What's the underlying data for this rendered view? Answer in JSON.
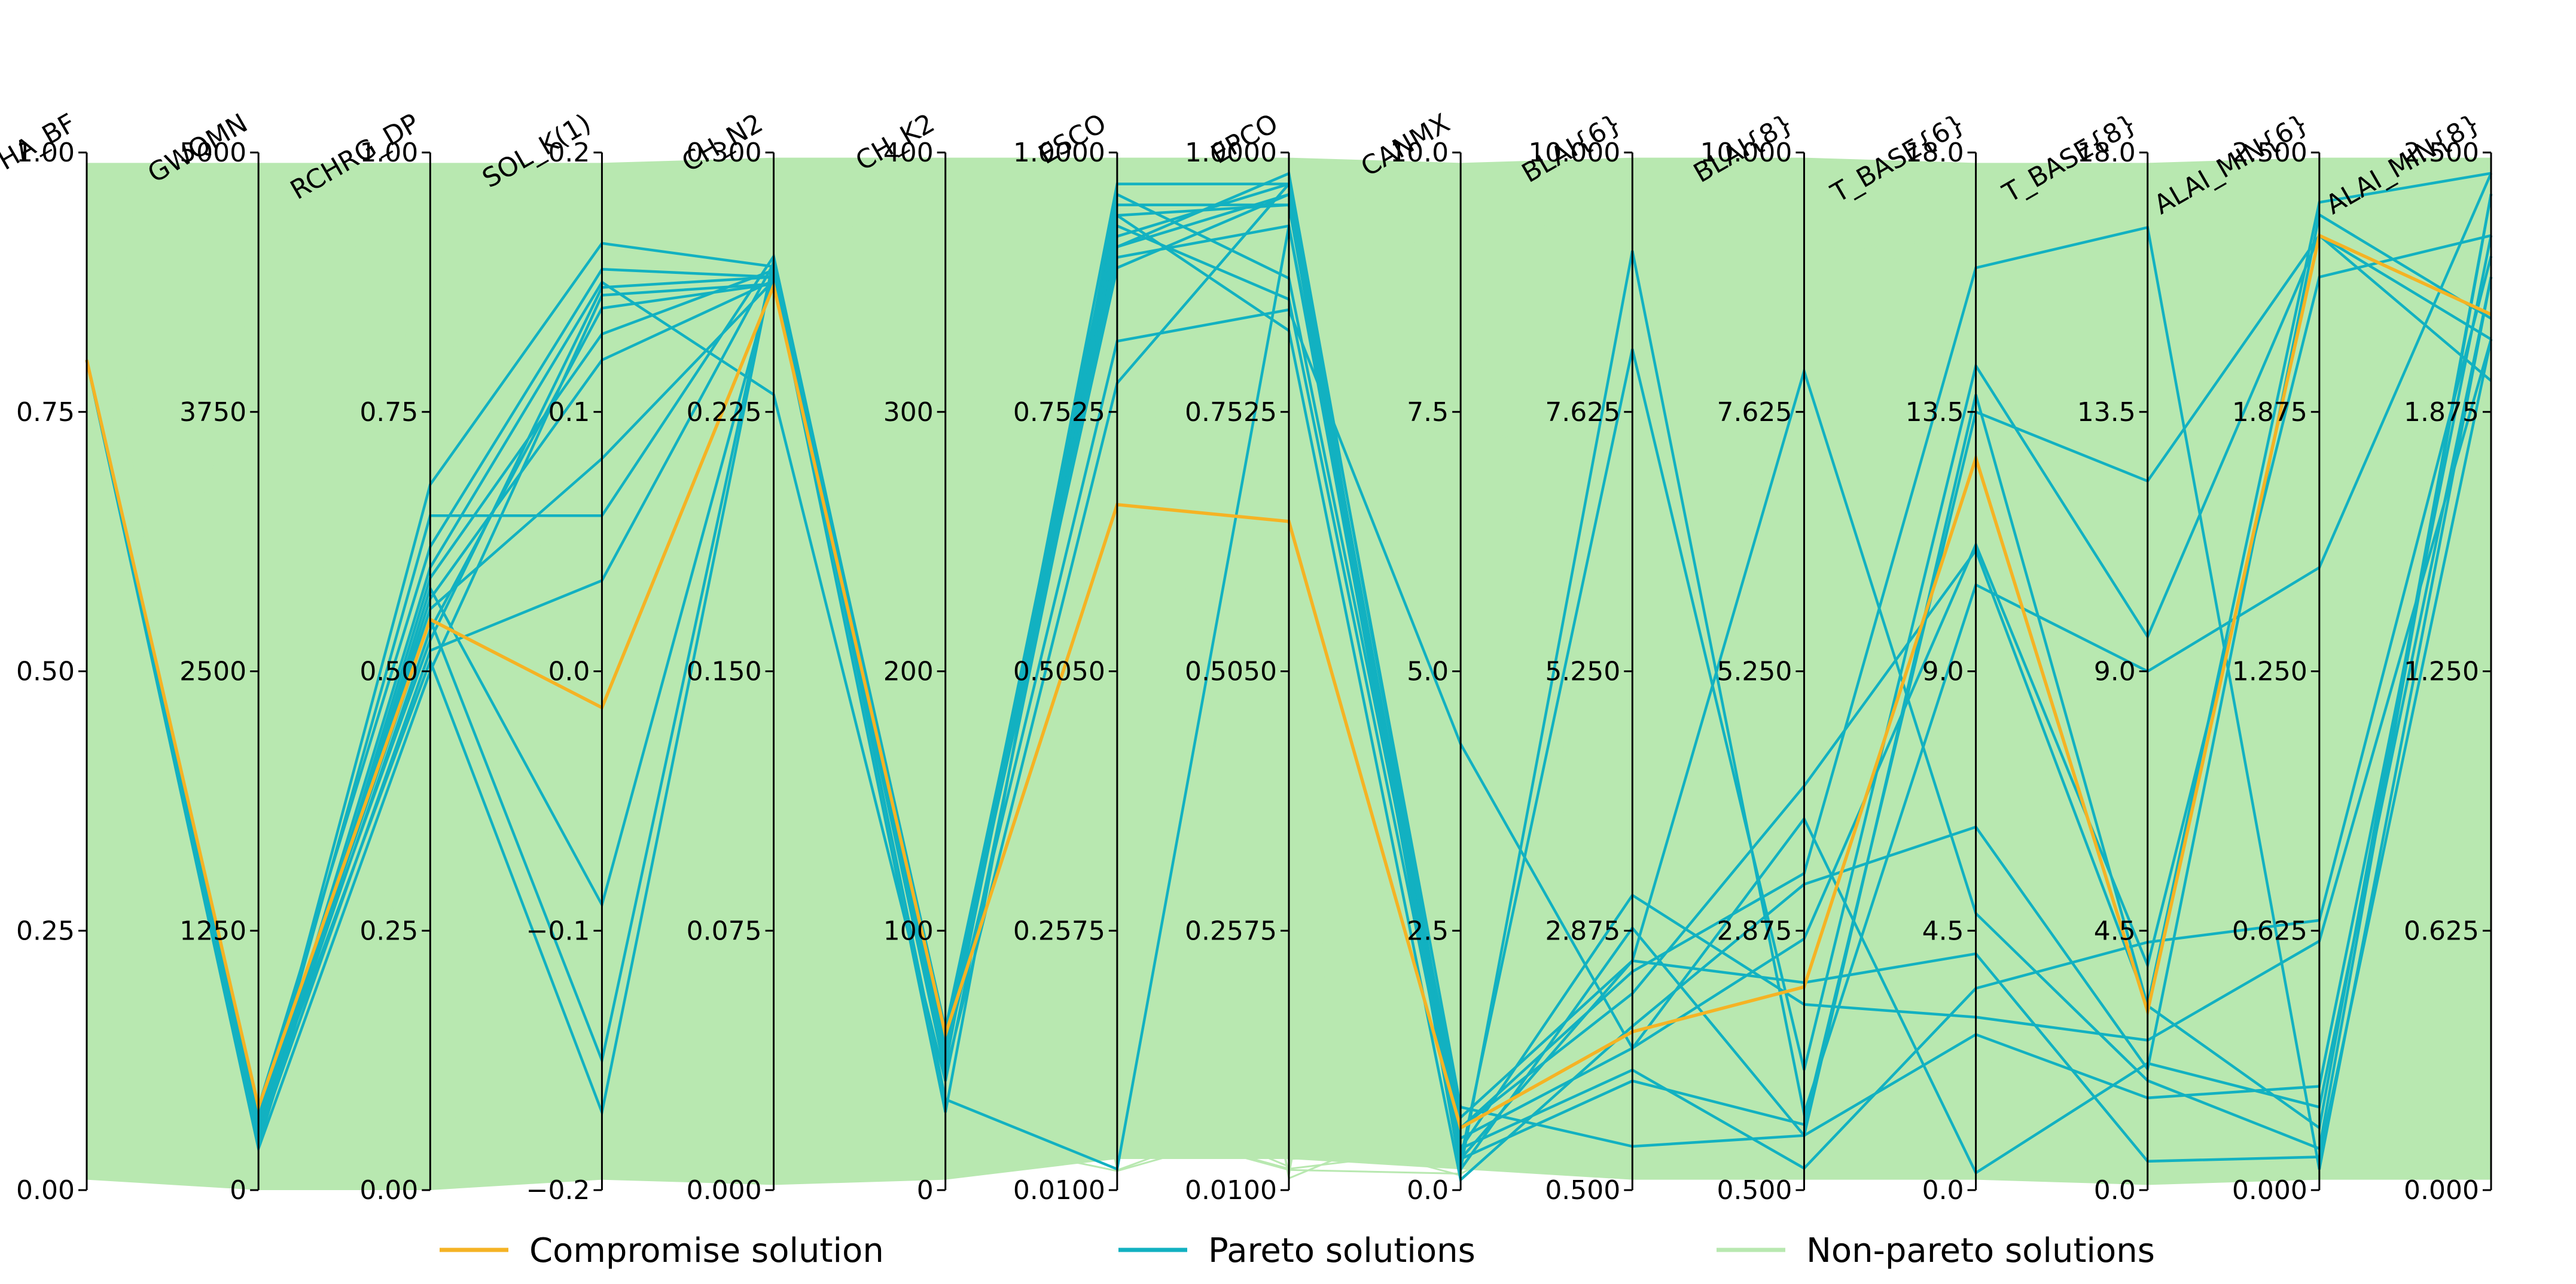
{
  "chart_data": {
    "type": "parallel-coordinates",
    "title": "",
    "axes": [
      {
        "name": "ALPHA_BF",
        "min": 0.0,
        "max": 1.0,
        "ticks": [
          "0.00",
          "0.25",
          "0.50",
          "0.75",
          "1.00"
        ]
      },
      {
        "name": "GWQMN",
        "min": 0,
        "max": 5000,
        "ticks": [
          "0",
          "1250",
          "2500",
          "3750",
          "5000"
        ]
      },
      {
        "name": "RCHRG_DP",
        "min": 0.0,
        "max": 1.0,
        "ticks": [
          "0.00",
          "0.25",
          "0.50",
          "0.75",
          "1.00"
        ]
      },
      {
        "name": "SOL_K(1)",
        "min": -0.2,
        "max": 0.2,
        "ticks": [
          "−0.2",
          "−0.1",
          "0.0",
          "0.1",
          "0.2"
        ]
      },
      {
        "name": "CH_N2",
        "min": 0.0,
        "max": 0.3,
        "ticks": [
          "0.000",
          "0.075",
          "0.150",
          "0.225",
          "0.300"
        ]
      },
      {
        "name": "CH_K2",
        "min": 0,
        "max": 400,
        "ticks": [
          "0",
          "100",
          "200",
          "300",
          "400"
        ]
      },
      {
        "name": "ESCO",
        "min": 0.01,
        "max": 1.0,
        "ticks": [
          "0.0100",
          "0.2575",
          "0.5050",
          "0.7525",
          "1.0000"
        ]
      },
      {
        "name": "EPCO",
        "min": 0.01,
        "max": 1.0,
        "ticks": [
          "0.0100",
          "0.2575",
          "0.5050",
          "0.7525",
          "1.0000"
        ]
      },
      {
        "name": "CANMX",
        "min": 0.0,
        "max": 10.0,
        "ticks": [
          "0.0",
          "2.5",
          "5.0",
          "7.5",
          "10.0"
        ]
      },
      {
        "name": "BLAI{6}",
        "min": 0.5,
        "max": 10.0,
        "ticks": [
          "0.500",
          "2.875",
          "5.250",
          "7.625",
          "10.000"
        ]
      },
      {
        "name": "BLAI{8}",
        "min": 0.5,
        "max": 10.0,
        "ticks": [
          "0.500",
          "2.875",
          "5.250",
          "7.625",
          "10.000"
        ]
      },
      {
        "name": "T_BASE{6}",
        "min": 0.0,
        "max": 18.0,
        "ticks": [
          "0.0",
          "4.5",
          "9.0",
          "13.5",
          "18.0"
        ]
      },
      {
        "name": "T_BASE{8}",
        "min": 0.0,
        "max": 18.0,
        "ticks": [
          "0.0",
          "4.5",
          "9.0",
          "13.5",
          "18.0"
        ]
      },
      {
        "name": "ALAI_MIN{6}",
        "min": 0.0,
        "max": 2.5,
        "ticks": [
          "0.000",
          "0.625",
          "1.250",
          "1.875",
          "2.500"
        ]
      },
      {
        "name": "ALAI_MIN{8}",
        "min": 0.0,
        "max": 2.5,
        "ticks": [
          "0.000",
          "0.625",
          "1.250",
          "1.875",
          "2.500"
        ]
      }
    ],
    "compromise_solution": [
      0.8,
      400,
      0.55,
      -0.014,
      0.2615,
      60,
      0.664,
      0.648,
      0.6,
      1.95,
      2.36,
      12.7,
      3.1,
      2.3,
      2.11
    ],
    "pareto_solutions": [
      [
        0.8,
        300,
        0.68,
        0.165,
        0.267,
        60,
        0.92,
        0.97,
        0.3,
        1.5,
        1.1,
        13.5,
        12.3,
        2.3,
        2.05
      ],
      [
        0.8,
        400,
        0.62,
        0.155,
        0.264,
        55,
        0.91,
        0.96,
        0.5,
        1.8,
        2.8,
        11.2,
        3.9,
        2.2,
        2.3
      ],
      [
        0.8,
        200,
        0.5,
        0.145,
        0.262,
        58,
        0.95,
        0.95,
        0.2,
        9.1,
        1.2,
        10.5,
        9.0,
        1.5,
        2.45
      ],
      [
        0.8,
        350,
        0.56,
        0.082,
        0.263,
        57,
        0.9,
        0.93,
        0.7,
        2.6,
        8.0,
        4.8,
        1.9,
        0.1,
        2.4
      ],
      [
        0.8,
        250,
        0.52,
        0.035,
        0.268,
        62,
        0.93,
        0.86,
        0.4,
        3.2,
        2.2,
        3.0,
        2.6,
        0.6,
        2.05
      ],
      [
        0.8,
        300,
        0.54,
        0.14,
        0.262,
        56,
        0.94,
        0.83,
        0.1,
        2.0,
        3.3,
        6.3,
        2.1,
        2.35,
        2.1
      ],
      [
        0.8,
        220,
        0.58,
        -0.09,
        0.265,
        48,
        0.97,
        0.97,
        0.8,
        0.9,
        1.0,
        2.7,
        1.6,
        0.25,
        2.3
      ],
      [
        0.8,
        280,
        0.6,
        0.15,
        0.23,
        42,
        0.91,
        0.98,
        0.6,
        2.5,
        3.4,
        16.0,
        16.7,
        0.05,
        2.2
      ],
      [
        0.8,
        320,
        0.51,
        -0.17,
        0.268,
        35,
        0.03,
        0.93,
        0.3,
        8.2,
        1.6,
        14.3,
        9.6,
        2.3,
        1.95
      ],
      [
        0.8,
        360,
        0.53,
        0.148,
        0.264,
        30,
        0.96,
        0.88,
        0.6,
        2.3,
        4.2,
        11.1,
        3.2,
        2.38,
        2.45
      ],
      [
        0.8,
        260,
        0.57,
        0.12,
        0.263,
        50,
        0.94,
        0.95,
        0.4,
        1.6,
        0.7,
        3.5,
        4.3,
        0.65,
        2.25
      ],
      [
        0.8,
        300,
        0.65,
        0.06,
        0.27,
        58,
        0.89,
        0.96,
        0.2,
        2.9,
        1.0,
        13.8,
        3.2,
        0.15,
        2.4
      ],
      [
        0.8,
        340,
        0.55,
        -0.15,
        0.269,
        52,
        0.82,
        0.85,
        4.3,
        1.8,
        3.9,
        0.3,
        2.2,
        0.2,
        2.2
      ],
      [
        0.8,
        240,
        0.59,
        0.13,
        0.266,
        45,
        0.78,
        0.97,
        0.3,
        2.6,
        2.4,
        4.1,
        0.5,
        0.08,
        2.05
      ]
    ],
    "legend": [
      "Compromise solution",
      "Pareto solutions",
      "Non-pareto solutions"
    ],
    "legend_placement": "bottom",
    "colors": {
      "compromise": "#f5b324",
      "pareto": "#12b1c1",
      "non_pareto": "#b8e8b0",
      "axis": "#000000"
    }
  }
}
